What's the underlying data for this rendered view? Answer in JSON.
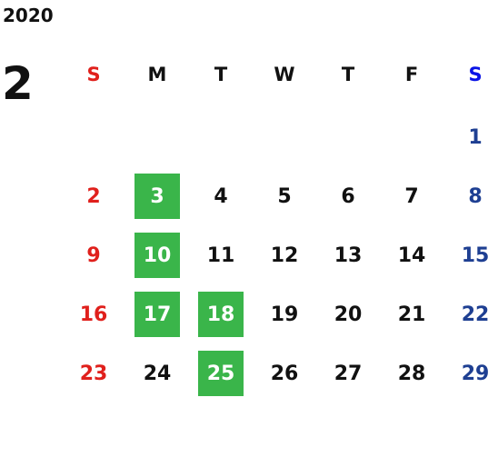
{
  "year": 2020,
  "month": 2,
  "weekdays": [
    "S",
    "M",
    "T",
    "W",
    "T",
    "F",
    "S"
  ],
  "weeks": [
    [
      null,
      null,
      null,
      null,
      null,
      null,
      1
    ],
    [
      2,
      3,
      4,
      5,
      6,
      7,
      8
    ],
    [
      9,
      10,
      11,
      12,
      13,
      14,
      15
    ],
    [
      16,
      17,
      18,
      19,
      20,
      21,
      22
    ],
    [
      23,
      24,
      25,
      26,
      27,
      28,
      29
    ]
  ],
  "highlighted": [
    3,
    10,
    17,
    18,
    25
  ]
}
